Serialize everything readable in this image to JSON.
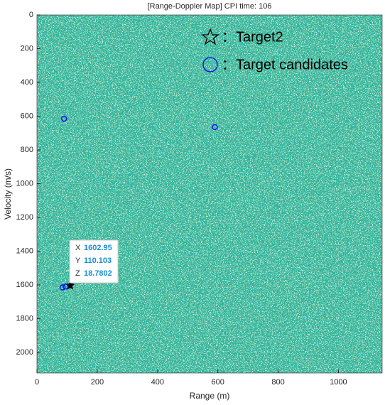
{
  "chart_data": {
    "type": "scatter",
    "title": "[Range-Doppler Map] CPI time: 106",
    "x_label": "Range (m)",
    "y_label": "Velocity (m/s)",
    "xlim": [
      0,
      1145
    ],
    "ylim": [
      0,
      2122
    ],
    "y_direction": "reverse",
    "xticks": [
      0,
      200,
      400,
      600,
      800,
      1000
    ],
    "yticks": [
      0,
      200,
      400,
      600,
      800,
      1000,
      1200,
      1400,
      1600,
      1800,
      2000
    ],
    "series": [
      {
        "name": "：Target2",
        "marker": "star",
        "color": "#000000",
        "x": [
          110
        ],
        "values": [
          1603
        ]
      },
      {
        "name": "：Target candidates",
        "marker": "circle",
        "color": "#0000ff",
        "x": [
          90,
          590,
          85,
          95
        ],
        "values": [
          615,
          665,
          1615,
          1610
        ]
      }
    ],
    "datatip": {
      "labels": [
        "X",
        "Y",
        "Z"
      ],
      "values": [
        1602.95,
        110.103,
        18.7802
      ]
    }
  }
}
